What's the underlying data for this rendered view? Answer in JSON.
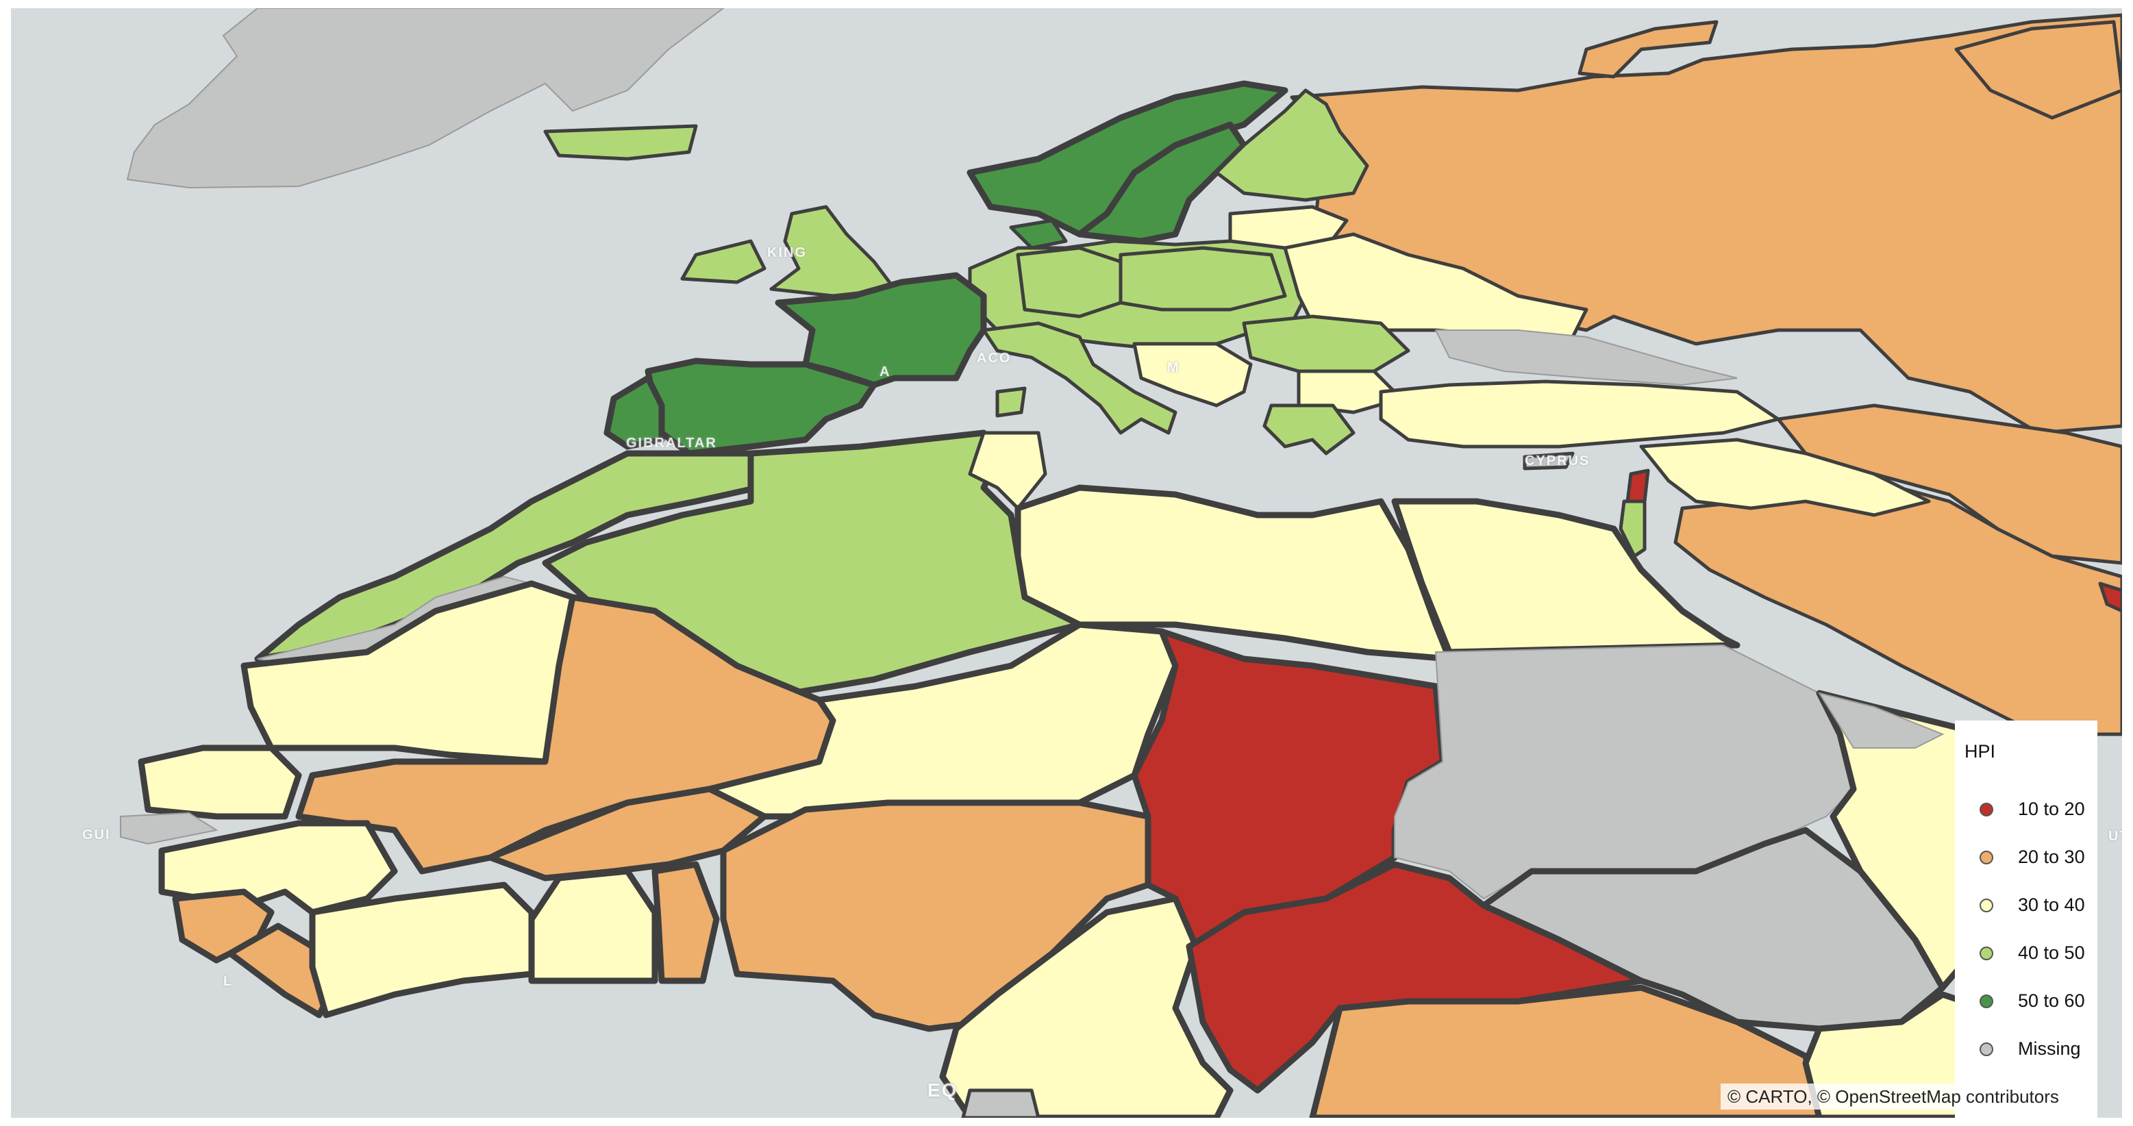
{
  "map": {
    "basemap_labels": [
      "KING",
      "GIBRALTAR",
      "ACO",
      "A",
      "M",
      "CYPRUS",
      "GUI",
      "EQ",
      "UT",
      "L"
    ],
    "colors": {
      "water": "#d5dadd",
      "missing": "#c3c4c4",
      "c10_20": "#c0302a",
      "c20_30": "#eeae6c",
      "c30_40": "#fffdc2",
      "c40_50": "#b1d876",
      "c50_60": "#489547"
    }
  },
  "legend": {
    "title": "HPI",
    "items": [
      {
        "label": "10 to 20",
        "color": "#c0302a"
      },
      {
        "label": "20 to 30",
        "color": "#eeae6c"
      },
      {
        "label": "30 to 40",
        "color": "#fffdc2"
      },
      {
        "label": "40 to 50",
        "color": "#b1d876"
      },
      {
        "label": "50 to 60",
        "color": "#489547"
      },
      {
        "label": "Missing",
        "color": "#c3c4c4"
      }
    ]
  },
  "attribution": "© CARTO, © OpenStreetMap contributors"
}
